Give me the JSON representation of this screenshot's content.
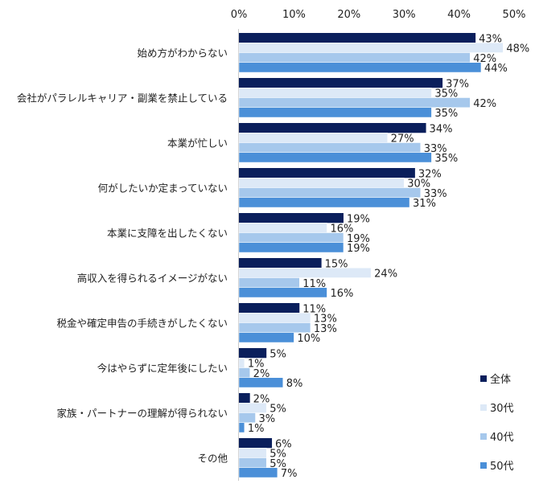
{
  "chart_data": {
    "type": "bar",
    "orientation": "horizontal",
    "title": "",
    "xlabel": "",
    "ylabel": "",
    "xlim": [
      0,
      50
    ],
    "x_ticks": [
      "0%",
      "10%",
      "20%",
      "30%",
      "40%",
      "50%"
    ],
    "x_tick_values": [
      0,
      10,
      20,
      30,
      40,
      50
    ],
    "tick_position": "top",
    "grid": false,
    "legend_position": "bottom-right",
    "categories": [
      "始め方がわからない",
      "会社がパラレルキャリア・副業を禁止している",
      "本業が忙しい",
      "何がしたいか定まっていない",
      "本業に支障を出したくない",
      "高収入を得られるイメージがない",
      "税金や確定申告の手続きがしたくない",
      "今はやらずに定年後にしたい",
      "家族・パートナーの理解が得られない",
      "その他"
    ],
    "series": [
      {
        "name": "全体",
        "color": "#0a1f5c",
        "values": [
          43,
          37,
          34,
          32,
          19,
          15,
          11,
          5,
          2,
          6
        ]
      },
      {
        "name": "30代",
        "color": "#dde9f7",
        "values": [
          48,
          35,
          27,
          30,
          16,
          24,
          13,
          1,
          5,
          5
        ]
      },
      {
        "name": "40代",
        "color": "#a6c8ec",
        "values": [
          42,
          42,
          33,
          33,
          19,
          11,
          13,
          2,
          3,
          5
        ]
      },
      {
        "name": "50代",
        "color": "#4a8fd8",
        "values": [
          44,
          35,
          35,
          31,
          19,
          16,
          10,
          8,
          1,
          7
        ]
      }
    ],
    "value_suffix": "%"
  }
}
